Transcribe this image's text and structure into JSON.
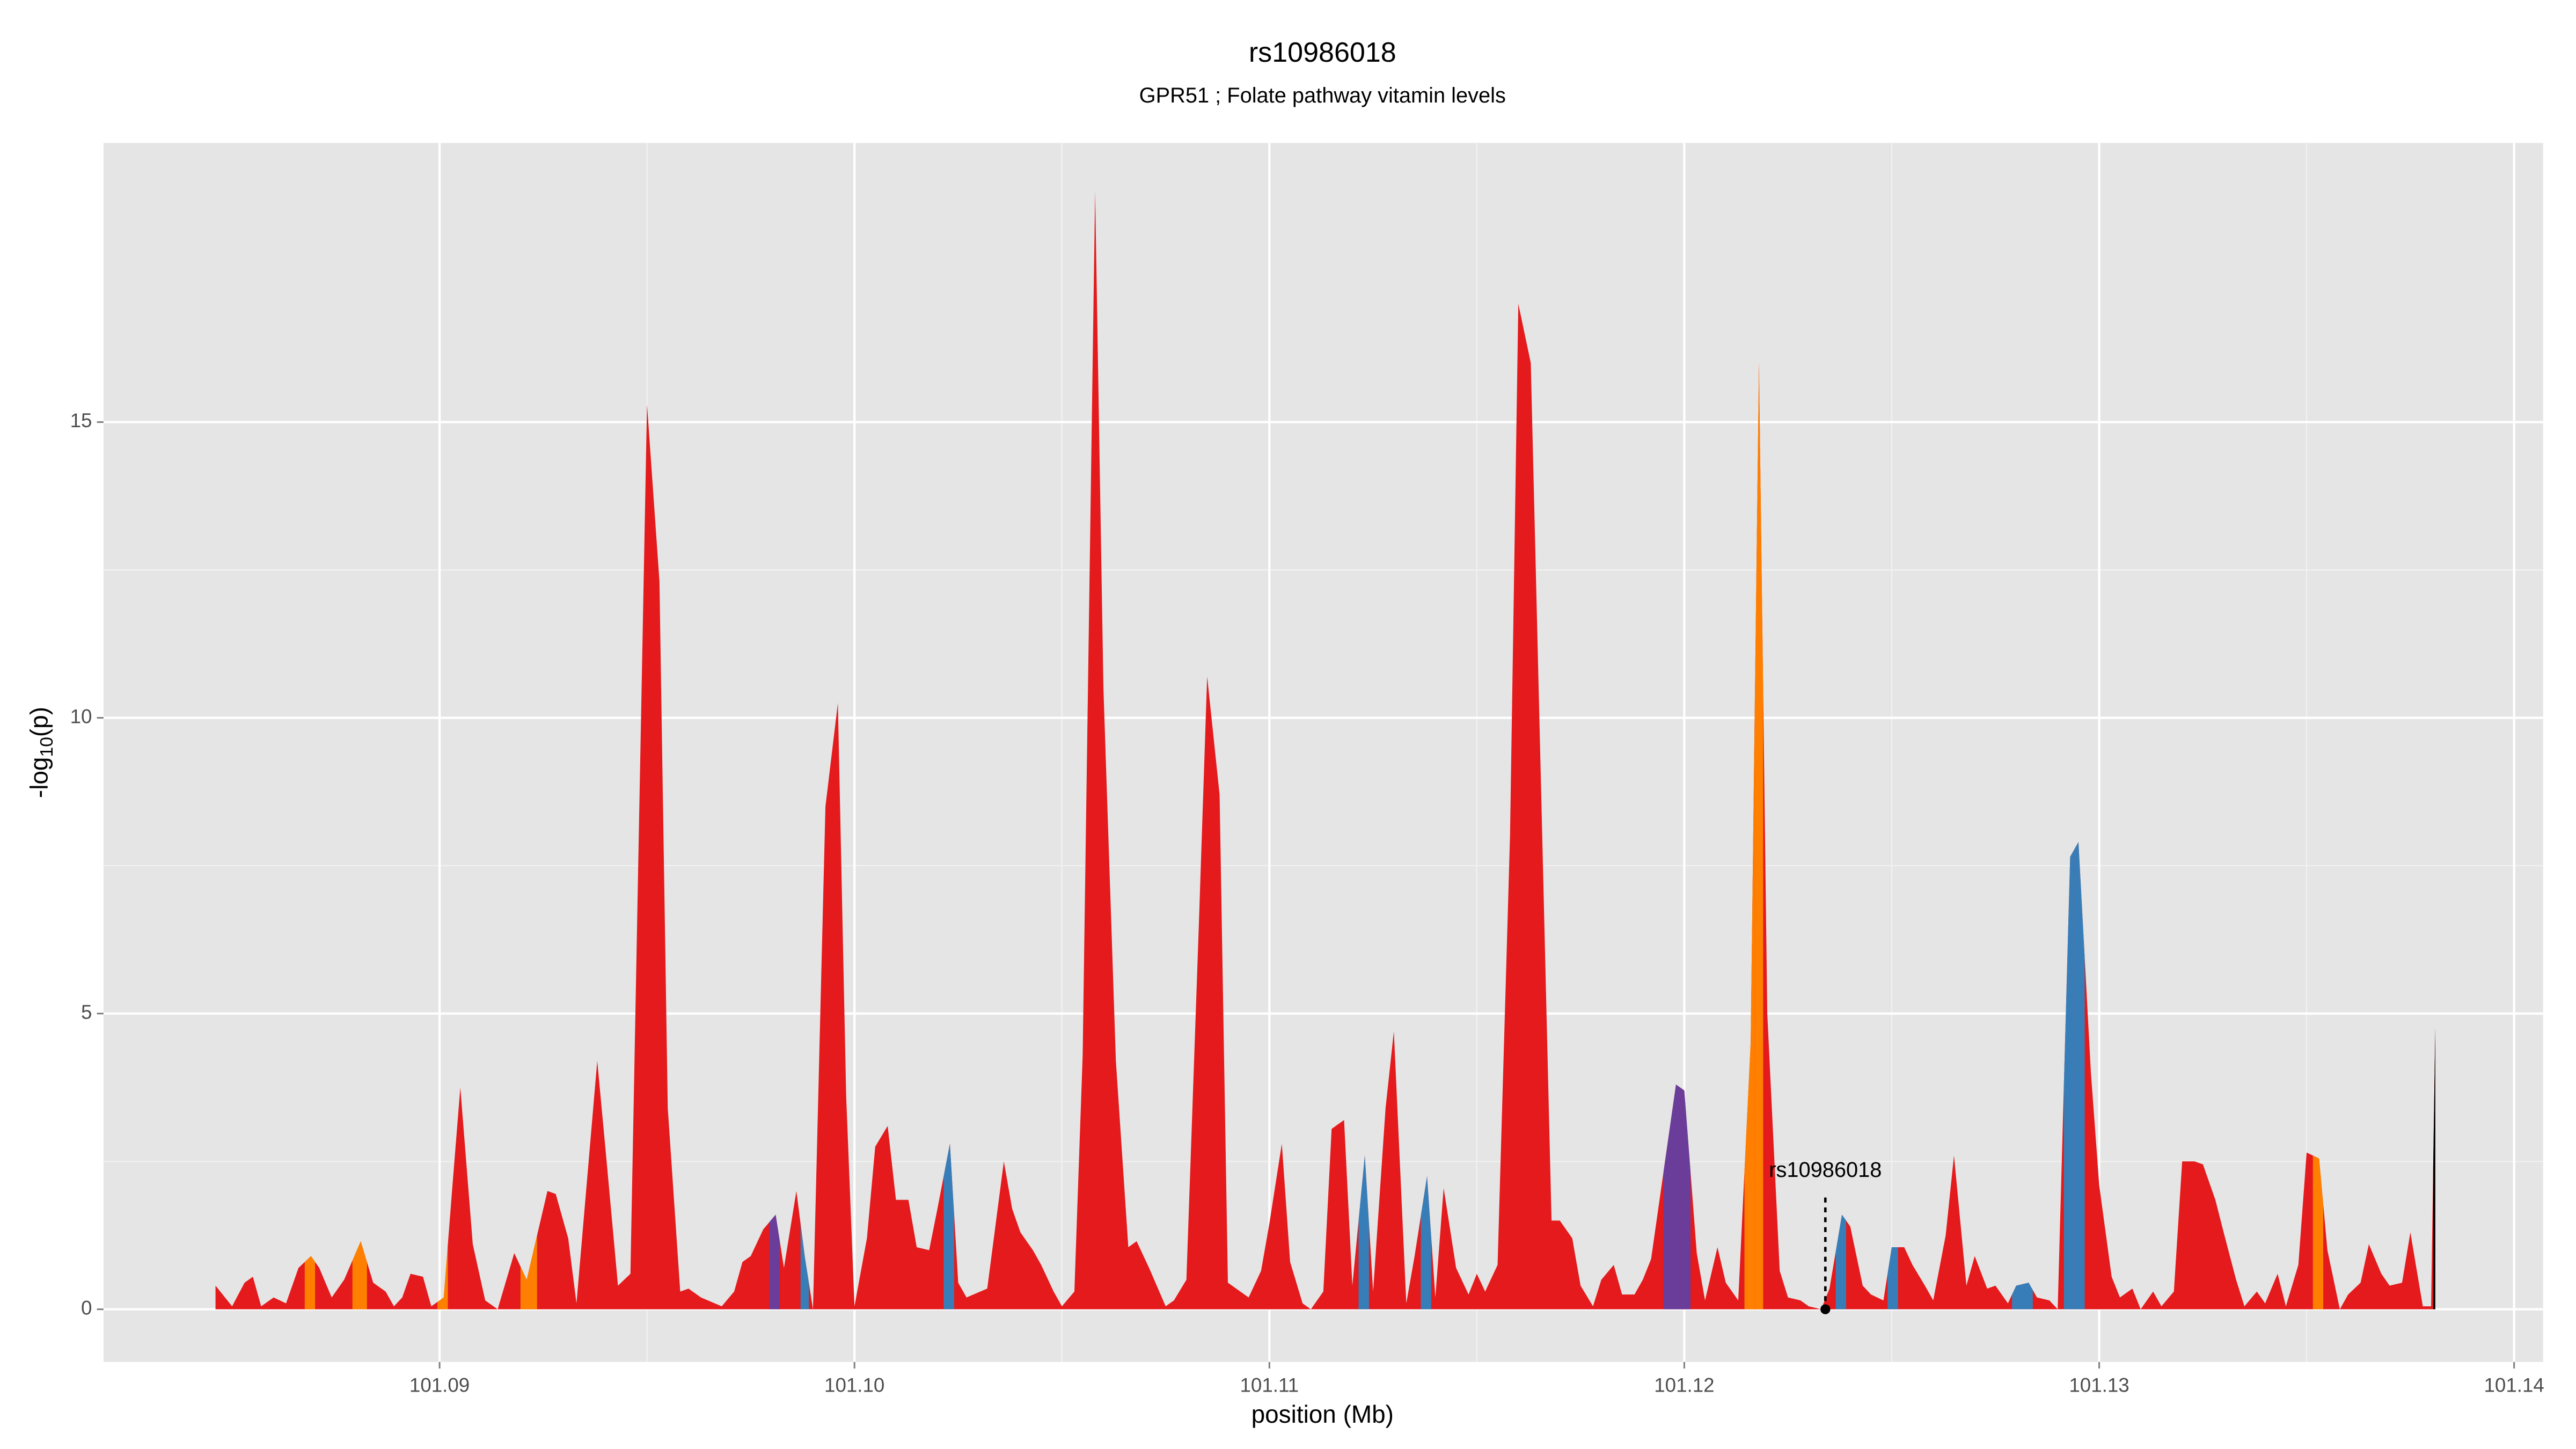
{
  "chart_data": {
    "type": "area",
    "title": "rs10986018",
    "subtitle": "GPR51 ; Folate pathway vitamin levels",
    "x_label": "position (Mb)",
    "y_label": {
      "prefix": "-log",
      "sub": "10",
      "suffix": "(p)"
    },
    "xlim": [
      101.0819,
      101.1407
    ],
    "ylim": [
      -0.89,
      19.72
    ],
    "xticks": [
      101.09,
      {
        "value": 101.1,
        "label": "101.10"
      },
      101.11,
      101.12,
      101.13,
      101.14
    ],
    "yticks": [
      0,
      5,
      10,
      15
    ],
    "grid": true,
    "minor_grid": true,
    "color": "#e41a1c",
    "x": [
      101.0846,
      101.085,
      101.0853,
      101.0855,
      101.0857,
      101.086,
      101.0863,
      101.0866,
      101.0869,
      101.0871,
      101.0874,
      101.0877,
      101.0881,
      101.0884,
      101.0887,
      101.0889,
      101.0891,
      101.0893,
      101.0896,
      101.0898,
      101.0901,
      101.0903,
      101.0905,
      101.0908,
      101.0911,
      101.0914,
      101.0918,
      101.0921,
      101.0926,
      101.0928,
      101.0931,
      101.0933,
      101.0938,
      101.094,
      101.0943,
      101.0946,
      101.095,
      101.0953,
      101.0955,
      101.0958,
      101.096,
      101.0963,
      101.0968,
      101.0971,
      101.0973,
      101.0975,
      101.0978,
      101.0981,
      101.0983,
      101.0986,
      101.0988,
      101.099,
      101.0993,
      101.0996,
      101.0998,
      101.1,
      101.1003,
      101.1005,
      101.1008,
      101.101,
      101.1013,
      101.1015,
      101.1018,
      101.102,
      101.1023,
      101.1025,
      101.1027,
      101.1032,
      101.1036,
      101.1038,
      101.104,
      101.1043,
      101.1045,
      101.1048,
      101.105,
      101.1053,
      101.1055,
      101.1058,
      101.106,
      101.1063,
      101.1066,
      101.1068,
      101.1071,
      101.1075,
      101.1077,
      101.108,
      101.1083,
      101.1085,
      101.1088,
      101.109,
      101.1095,
      101.1098,
      101.11,
      101.1103,
      101.1105,
      101.1108,
      101.111,
      101.1113,
      101.1115,
      101.1118,
      101.112,
      101.1123,
      101.1125,
      101.1128,
      101.113,
      101.1133,
      101.1135,
      101.1138,
      101.114,
      101.1142,
      101.1145,
      101.1148,
      101.115,
      101.1152,
      101.1155,
      101.1158,
      101.116,
      101.1163,
      101.1168,
      101.117,
      101.1173,
      101.1175,
      101.1178,
      101.118,
      101.1183,
      101.1185,
      101.1188,
      101.119,
      101.1192,
      101.1198,
      101.12,
      101.1203,
      101.1205,
      101.1208,
      101.121,
      101.1213,
      101.1216,
      101.1218,
      101.122,
      101.1223,
      101.1225,
      101.1228,
      101.123,
      101.1233,
      101.1235,
      101.1238,
      101.124,
      101.1243,
      101.1245,
      101.1248,
      101.125,
      101.1253,
      101.1255,
      101.1258,
      101.126,
      101.1263,
      101.1265,
      101.1268,
      101.127,
      101.1273,
      101.1275,
      101.1278,
      101.128,
      101.1283,
      101.1285,
      101.1288,
      101.129,
      101.1293,
      101.1295,
      101.1298,
      101.13,
      101.1303,
      101.1305,
      101.1308,
      101.131,
      101.1313,
      101.1315,
      101.1318,
      101.132,
      101.1323,
      101.1325,
      101.1328,
      101.133,
      101.1333,
      101.1335,
      101.1338,
      101.134,
      101.1343,
      101.1345,
      101.1348,
      101.135,
      101.1353,
      101.1355,
      101.1358,
      101.136,
      101.1363,
      101.1365,
      101.1368,
      101.137,
      101.1373,
      101.1375,
      101.1378,
      101.138,
      101.1381
    ],
    "values": [
      0.4,
      0.05,
      0.45,
      0.55,
      0.05,
      0.2,
      0.1,
      0.7,
      0.9,
      0.7,
      0.2,
      0.5,
      1.15,
      0.45,
      0.3,
      0.05,
      0.2,
      0.6,
      0.55,
      0.05,
      0.2,
      2.0,
      3.75,
      1.1,
      0.15,
      0.0,
      0.95,
      0.5,
      2.0,
      1.95,
      1.2,
      0.1,
      4.2,
      2.7,
      0.4,
      0.6,
      15.3,
      12.3,
      3.4,
      0.3,
      0.35,
      0.2,
      0.05,
      0.3,
      0.8,
      0.9,
      1.35,
      1.6,
      0.7,
      2.0,
      0.9,
      0.0,
      8.5,
      10.25,
      3.6,
      0.05,
      1.2,
      2.75,
      3.1,
      1.85,
      1.85,
      1.05,
      1.0,
      1.7,
      2.8,
      0.45,
      0.2,
      0.35,
      2.5,
      1.7,
      1.3,
      1.0,
      0.75,
      0.3,
      0.05,
      0.3,
      4.3,
      18.9,
      10.5,
      4.2,
      1.05,
      1.15,
      0.7,
      0.05,
      0.15,
      0.5,
      6.5,
      10.7,
      8.7,
      0.45,
      0.2,
      0.65,
      1.45,
      2.8,
      0.8,
      0.1,
      0.0,
      0.3,
      3.05,
      3.2,
      0.4,
      2.6,
      0.3,
      3.4,
      4.7,
      0.1,
      0.9,
      2.25,
      0.2,
      2.05,
      0.7,
      0.25,
      0.6,
      0.3,
      0.75,
      8.0,
      17.0,
      16.0,
      1.5,
      1.5,
      1.2,
      0.4,
      0.05,
      0.5,
      0.75,
      0.25,
      0.25,
      0.5,
      0.85,
      3.8,
      3.7,
      0.95,
      0.15,
      1.05,
      0.45,
      0.15,
      4.5,
      16.0,
      5.0,
      0.65,
      0.2,
      0.15,
      0.05,
      0.0,
      0.35,
      1.6,
      1.4,
      0.4,
      0.25,
      0.15,
      1.05,
      1.05,
      0.75,
      0.4,
      0.15,
      1.25,
      2.6,
      0.4,
      0.9,
      0.35,
      0.4,
      0.1,
      0.4,
      0.45,
      0.2,
      0.15,
      0.0,
      7.65,
      7.9,
      4.0,
      2.1,
      0.55,
      0.2,
      0.35,
      0.0,
      0.3,
      0.05,
      0.3,
      2.5,
      2.5,
      2.45,
      1.85,
      1.3,
      0.5,
      0.05,
      0.3,
      0.1,
      0.6,
      0.05,
      0.75,
      2.65,
      2.55,
      1.0,
      0.0,
      0.25,
      0.45,
      1.1,
      0.6,
      0.4,
      0.45,
      1.3,
      0.05,
      0.05,
      4.75
    ],
    "point_colors": [
      "#e41a1c",
      "#e41a1c",
      "#e41a1c",
      "#e41a1c",
      "#e41a1c",
      "#e41a1c",
      "#e41a1c",
      "#e41a1c",
      "#ff7f00",
      "#e41a1c",
      "#e41a1c",
      "#e41a1c",
      "#ff7f00",
      "#e41a1c",
      "#e41a1c",
      "#e41a1c",
      "#e41a1c",
      "#e41a1c",
      "#e41a1c",
      "#e41a1c",
      "#ff7f00",
      "#e41a1c",
      "#e41a1c",
      "#e41a1c",
      "#e41a1c",
      "#e41a1c",
      "#e41a1c",
      "#ff7f00",
      "#e41a1c",
      "#e41a1c",
      "#e41a1c",
      "#e41a1c",
      "#e41a1c",
      "#e41a1c",
      "#e41a1c",
      "#e41a1c",
      "#e41a1c",
      "#e41a1c",
      "#e41a1c",
      "#e41a1c",
      "#e41a1c",
      "#e41a1c",
      "#e41a1c",
      "#e41a1c",
      "#e41a1c",
      "#e41a1c",
      "#e41a1c",
      "#6a3d9a",
      "#e41a1c",
      "#e41a1c",
      "#377eb8",
      "#e41a1c",
      "#e41a1c",
      "#e41a1c",
      "#e41a1c",
      "#e41a1c",
      "#e41a1c",
      "#e41a1c",
      "#e41a1c",
      "#e41a1c",
      "#e41a1c",
      "#e41a1c",
      "#e41a1c",
      "#e41a1c",
      "#377eb8",
      "#e41a1c",
      "#e41a1c",
      "#e41a1c",
      "#e41a1c",
      "#e41a1c",
      "#e41a1c",
      "#e41a1c",
      "#e41a1c",
      "#e41a1c",
      "#e41a1c",
      "#e41a1c",
      "#e41a1c",
      "#e41a1c",
      "#e41a1c",
      "#e41a1c",
      "#e41a1c",
      "#e41a1c",
      "#e41a1c",
      "#e41a1c",
      "#e41a1c",
      "#e41a1c",
      "#e41a1c",
      "#e41a1c",
      "#e41a1c",
      "#e41a1c",
      "#e41a1c",
      "#e41a1c",
      "#e41a1c",
      "#e41a1c",
      "#e41a1c",
      "#e41a1c",
      "#e41a1c",
      "#e41a1c",
      "#e41a1c",
      "#e41a1c",
      "#e41a1c",
      "#377eb8",
      "#e41a1c",
      "#e41a1c",
      "#e41a1c",
      "#e41a1c",
      "#e41a1c",
      "#377eb8",
      "#e41a1c",
      "#e41a1c",
      "#e41a1c",
      "#e41a1c",
      "#e41a1c",
      "#e41a1c",
      "#e41a1c",
      "#e41a1c",
      "#e41a1c",
      "#e41a1c",
      "#e41a1c",
      "#e41a1c",
      "#e41a1c",
      "#e41a1c",
      "#e41a1c",
      "#e41a1c",
      "#e41a1c",
      "#e41a1c",
      "#e41a1c",
      "#e41a1c",
      "#e41a1c",
      "#6a3d9a",
      "#6a3d9a",
      "#e41a1c",
      "#e41a1c",
      "#e41a1c",
      "#e41a1c",
      "#e41a1c",
      "#ff7f00",
      "#ff7f00",
      "#e41a1c",
      "#e41a1c",
      "#e41a1c",
      "#e41a1c",
      "#e41a1c",
      "#e41a1c",
      "#e41a1c",
      "#377eb8",
      "#e41a1c",
      "#e41a1c",
      "#e41a1c",
      "#e41a1c",
      "#377eb8",
      "#e41a1c",
      "#e41a1c",
      "#e41a1c",
      "#e41a1c",
      "#e41a1c",
      "#e41a1c",
      "#e41a1c",
      "#e41a1c",
      "#e41a1c",
      "#e41a1c",
      "#e41a1c",
      "#377eb8",
      "#377eb8",
      "#e41a1c",
      "#e41a1c",
      "#e41a1c",
      "#377eb8",
      "#377eb8",
      "#e41a1c",
      "#e41a1c",
      "#e41a1c",
      "#e41a1c",
      "#e41a1c",
      "#e41a1c",
      "#e41a1c",
      "#e41a1c",
      "#e41a1c",
      "#e41a1c",
      "#e41a1c",
      "#e41a1c",
      "#e41a1c",
      "#e41a1c",
      "#e41a1c",
      "#e41a1c",
      "#e41a1c",
      "#e41a1c",
      "#e41a1c",
      "#e41a1c",
      "#e41a1c",
      "#e41a1c",
      "#ff7f00",
      "#e41a1c",
      "#e41a1c",
      "#e41a1c",
      "#e41a1c",
      "#e41a1c",
      "#e41a1c",
      "#e41a1c",
      "#e41a1c",
      "#e41a1c",
      "#e41a1c",
      "#e41a1c"
    ],
    "annotation": {
      "label": "rs10986018",
      "x": 101.1234,
      "y": 0
    }
  }
}
